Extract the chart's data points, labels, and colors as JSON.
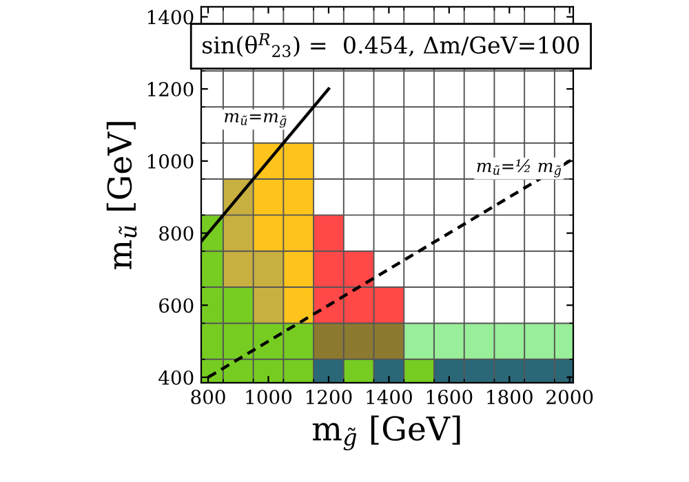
{
  "chart_data": {
    "type": "scatter",
    "xlabel": "m$_{g̃}$ [GeV]",
    "ylabel": "m$_{ũ}$ [GeV]",
    "xlim": [
      777,
      2012
    ],
    "ylim": [
      385,
      1428
    ],
    "xticks": [
      800,
      {
        "value": 850,
        "label": null
      },
      {
        "value": 950,
        "label": null
      },
      1000,
      {
        "value": 1050,
        "label": null
      },
      {
        "value": 1150,
        "label": null
      },
      1200,
      {
        "value": 1250,
        "label": null
      },
      {
        "value": 1350,
        "label": null
      },
      1400,
      {
        "value": 1450,
        "label": null
      },
      {
        "value": 1550,
        "label": null
      },
      1600,
      {
        "value": 1650,
        "label": null
      },
      {
        "value": 1750,
        "label": null
      },
      1800,
      {
        "value": 1850,
        "label": null
      },
      {
        "value": 1950,
        "label": null
      },
      2000
    ],
    "yticks": [
      400,
      {
        "value": 450,
        "label": null
      },
      {
        "value": 550,
        "label": null
      },
      600,
      {
        "value": 650,
        "label": null
      },
      {
        "value": 750,
        "label": null
      },
      800,
      {
        "value": 850,
        "label": null
      },
      {
        "value": 950,
        "label": null
      },
      1000,
      {
        "value": 1050,
        "label": null
      },
      {
        "value": 1150,
        "label": null
      },
      1200,
      {
        "value": 1250,
        "label": null
      },
      {
        "value": 1350,
        "label": null
      },
      1400
    ],
    "grid": true,
    "marker": "square",
    "series": [
      {
        "color": "#77cc22",
        "x": [
          800,
          900,
          1000,
          1100,
          1300,
          1500,
          800,
          900,
          1000,
          1100,
          800,
          900,
          800,
          800
        ],
        "values": [
          400,
          400,
          400,
          400,
          400,
          400,
          500,
          500,
          500,
          500,
          600,
          600,
          700,
          800
        ]
      },
      {
        "color": "#c8b040",
        "x": [
          1000,
          900,
          1000,
          900,
          900
        ],
        "values": [
          600,
          700,
          700,
          800,
          900
        ]
      },
      {
        "color": "#ffc41c",
        "x": [
          1100,
          1100,
          1000,
          1100,
          1000,
          1100,
          1000,
          1100
        ],
        "values": [
          600,
          700,
          800,
          800,
          900,
          900,
          1000,
          1000
        ]
      },
      {
        "color": "#ff4848",
        "x": [
          1200,
          1300,
          1400,
          1200,
          1300,
          1200
        ],
        "values": [
          600,
          600,
          600,
          700,
          700,
          800
        ]
      },
      {
        "color": "#8c7a30",
        "x": [
          1200,
          1300,
          1400
        ],
        "values": [
          500,
          500,
          500
        ]
      },
      {
        "color": "#99ee99",
        "x": [
          1500,
          1600,
          1700,
          1800,
          1900,
          2000
        ],
        "values": [
          500,
          500,
          500,
          500,
          500,
          500
        ]
      },
      {
        "color": "#2a6878",
        "x": [
          1200,
          1400,
          1600,
          1700,
          1800,
          1900,
          2000
        ],
        "values": [
          400,
          400,
          400,
          400,
          400,
          400,
          400
        ]
      },
      {
        "type": "line",
        "marker": "none",
        "color": "#000000",
        "line_style": "solid",
        "x": [
          777,
          1200
        ],
        "values": [
          777,
          1200
        ]
      },
      {
        "type": "line",
        "marker": "none",
        "color": "#000000",
        "line_style": "dashed",
        "x": [
          800,
          2012
        ],
        "values": [
          400,
          1006
        ]
      }
    ],
    "annotations": [
      "sin(θ$^{R}$$_{23}$) =  0.454, Δm/GeV=100",
      "m$_{ũ}$=m$_{g̃}$",
      "m$_{ũ}$=½ m$_{g̃}$"
    ]
  }
}
